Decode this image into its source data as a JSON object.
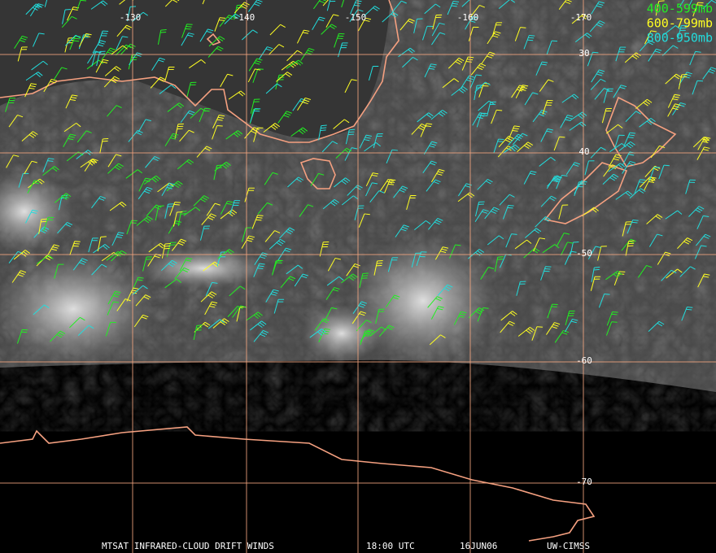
{
  "map": {
    "longitude_labels": [
      "-130",
      "-140",
      "-150",
      "-160",
      "-170"
    ],
    "latitude_labels": [
      "30",
      "40",
      "-50",
      "-60",
      "-70"
    ]
  },
  "legend": [
    {
      "label": "400-599mb",
      "color": "#22ee22"
    },
    {
      "label": "600-799mb",
      "color": "#ffff22"
    },
    {
      "label": "800-950mb",
      "color": "#22dddd"
    }
  ],
  "footer": [
    "MTSAT INFRARED-CLOUD DRIFT WINDS",
    "18:00 UTC",
    "16JUN06",
    "UW-CIMSS"
  ]
}
